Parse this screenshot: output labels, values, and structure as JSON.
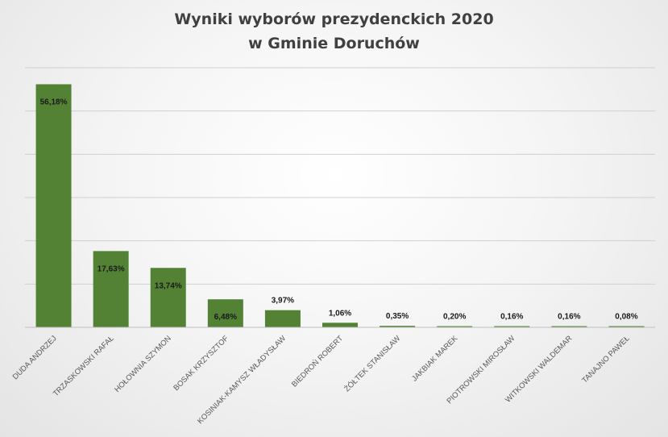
{
  "chart_data": {
    "type": "bar",
    "title_lines": [
      "Wyniki wyborów prezydenckich 2020",
      "w Gminie Doruchów"
    ],
    "categories": [
      "DUDA ANDRZEJ",
      "TRZASKOWSKI RAFAŁ",
      "HOŁOWNIA SZYMON",
      "BOSAK KRZYSZTOF",
      "KOSINIAK-KAMYSZ WŁADYSŁAW",
      "BIEDROŃ ROBERT",
      "ŻÓŁTEK STANISŁAW",
      "JAKBIAK MAREK",
      "PIOTROWSKI MIROSŁAW",
      "WITKOWSKI WALDEMAR",
      "TANAJNO PAWEŁ"
    ],
    "values": [
      56.18,
      17.63,
      13.74,
      6.48,
      3.97,
      1.06,
      0.35,
      0.2,
      0.16,
      0.16,
      0.08
    ],
    "data_labels": [
      "56,18%",
      "17,63%",
      "13,74%",
      "6,48%",
      "3,97%",
      "1,06%",
      "0,35%",
      "0,20%",
      "0,16%",
      "0,16%",
      "0,08%"
    ],
    "ylim": [
      0,
      60
    ],
    "gridlines": true,
    "legend": "none",
    "xlabel": "",
    "ylabel": "",
    "bar_color": "#548235"
  }
}
